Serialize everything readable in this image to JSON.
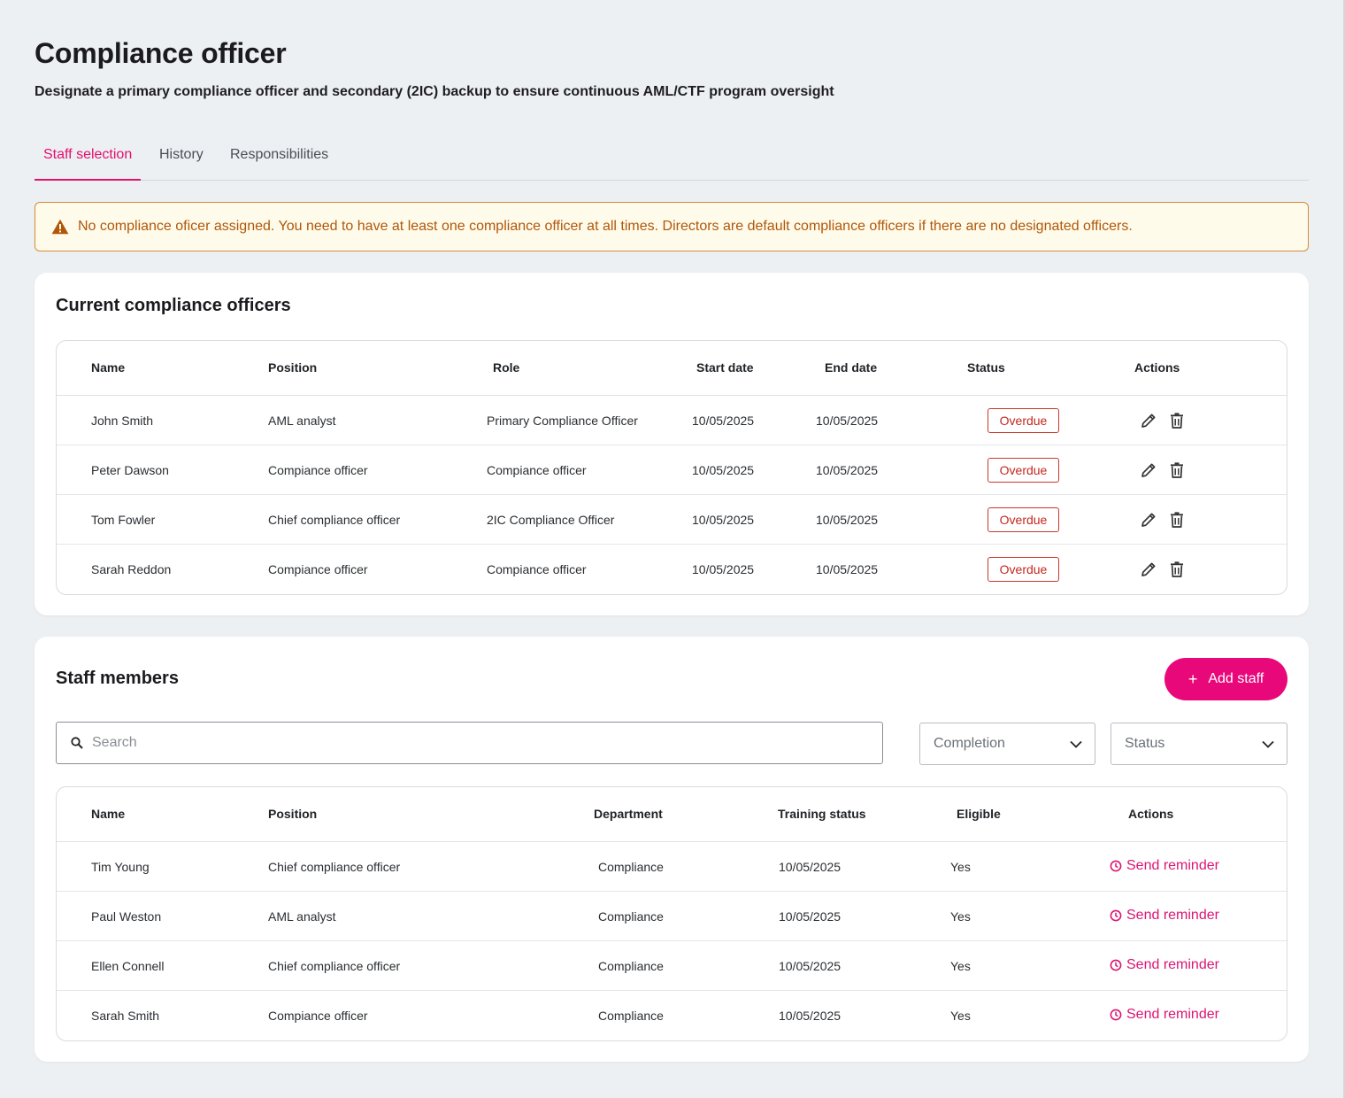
{
  "page": {
    "title": "Compliance officer",
    "subtitle": "Designate a primary compliance officer and secondary (2IC) backup to ensure continuous AML/CTF program oversight"
  },
  "tabs": [
    {
      "label": "Staff selection",
      "active": true
    },
    {
      "label": "History",
      "active": false
    },
    {
      "label": "Responsibilities",
      "active": false
    }
  ],
  "alert": {
    "icon": "warning-icon",
    "text": "No compliance oficer assigned. You need to have at least one compliance officer at all times. Directors are default compliance officers if there are no designated officers."
  },
  "officers": {
    "title": "Current  compliance officers",
    "columns": [
      "Name",
      "Position",
      "Role",
      "Start date",
      "End date",
      "Status",
      "Actions"
    ],
    "rows": [
      {
        "name": "John Smith",
        "position": "AML analyst",
        "role": "Primary Compliance Officer",
        "start": "10/05/2025",
        "end": "10/05/2025",
        "status": "Overdue"
      },
      {
        "name": "Peter Dawson",
        "position": "Compiance officer",
        "role": "Compiance officer",
        "start": "10/05/2025",
        "end": "10/05/2025",
        "status": "Overdue"
      },
      {
        "name": "Tom Fowler",
        "position": "Chief compliance officer",
        "role": "2IC Compliance Officer",
        "start": "10/05/2025",
        "end": "10/05/2025",
        "status": "Overdue"
      },
      {
        "name": "Sarah Reddon",
        "position": "Compiance officer",
        "role": "Compiance officer",
        "start": "10/05/2025",
        "end": "10/05/2025",
        "status": "Overdue"
      }
    ]
  },
  "staff": {
    "title": "Staff members",
    "add_label": "Add staff",
    "search_placeholder": "Search",
    "filters": [
      {
        "label": "Completion"
      },
      {
        "label": "Status"
      }
    ],
    "columns": [
      "Name",
      "Position",
      "Department",
      "Training status",
      "Eligible",
      "Actions"
    ],
    "rows": [
      {
        "name": "Tim Young",
        "position": "Chief compliance officer",
        "department": "Compliance",
        "training": "10/05/2025",
        "eligible": "Yes",
        "action": "Send reminder"
      },
      {
        "name": "Paul Weston",
        "position": "AML analyst",
        "department": "Compliance",
        "training": "10/05/2025",
        "eligible": "Yes",
        "action": "Send reminder"
      },
      {
        "name": "Ellen Connell",
        "position": "Chief compliance officer",
        "department": "Compliance",
        "training": "10/05/2025",
        "eligible": "Yes",
        "action": "Send reminder"
      },
      {
        "name": "Sarah Smith",
        "position": "Compiance officer",
        "department": "Compliance",
        "training": "10/05/2025",
        "eligible": "Yes",
        "action": "Send reminder"
      }
    ]
  },
  "colors": {
    "accent": "#e8087a",
    "warning_text": "#b0570a",
    "warning_border": "#d68a36",
    "overdue": "#c9372c"
  }
}
